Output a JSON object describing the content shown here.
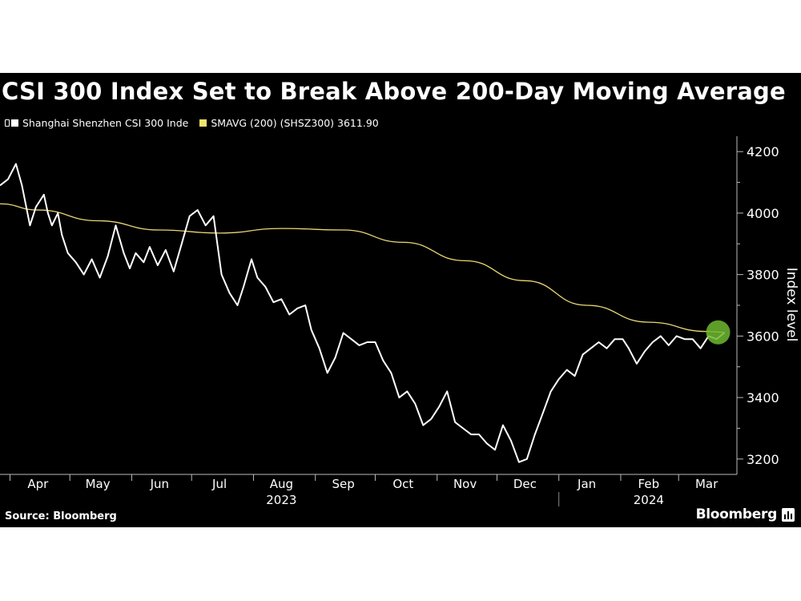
{
  "title": "CSI 300 Index Set to Break Above 200-Day Moving Average",
  "legend": [
    {
      "label": "Shanghai Shenzhen CSI 300 Inde",
      "color": "#ffffff"
    },
    {
      "label": "SMAVG (200)  (SHSZ300) 3611.90",
      "color": "#f2e46c"
    }
  ],
  "source": "Source: Bloomberg",
  "brand": "Bloomberg",
  "colors": {
    "background": "#000000",
    "index_line": "#ffffff",
    "sma_line": "#e8d774",
    "highlight": "#6fb82f"
  },
  "chart_data": {
    "type": "line",
    "title": "CSI 300 Index Set to Break Above 200-Day Moving Average",
    "ylabel": "Index level",
    "ylim": [
      3150,
      4250
    ],
    "yticks": [
      "4200",
      "4000",
      "3800",
      "3600",
      "3400",
      "3200"
    ],
    "ytick_values": [
      4200,
      4000,
      3800,
      3600,
      3400,
      3200
    ],
    "xlim": [
      "2023-03-27",
      "2024-03-27"
    ],
    "month_ticks": [
      {
        "label": "Apr",
        "date": "2023-04-15"
      },
      {
        "label": "May",
        "date": "2023-05-15"
      },
      {
        "label": "Jun",
        "date": "2023-06-15"
      },
      {
        "label": "Jul",
        "date": "2023-07-15"
      },
      {
        "label": "Aug",
        "date": "2023-08-15"
      },
      {
        "label": "Sep",
        "date": "2023-09-15"
      },
      {
        "label": "Oct",
        "date": "2023-10-15"
      },
      {
        "label": "Nov",
        "date": "2023-11-15"
      },
      {
        "label": "Dec",
        "date": "2023-12-15"
      },
      {
        "label": "Jan",
        "date": "2024-01-15"
      },
      {
        "label": "Feb",
        "date": "2024-02-15"
      },
      {
        "label": "Mar",
        "date": "2024-03-15"
      }
    ],
    "year_labels": [
      {
        "label": "2023",
        "date": "2023-08-15"
      },
      {
        "label": "2024",
        "date": "2024-02-15"
      }
    ],
    "series": [
      {
        "name": "Shanghai Shenzhen CSI 300 Inde",
        "x": [
          "2023-03-27",
          "2023-03-31",
          "2023-04-04",
          "2023-04-07",
          "2023-04-11",
          "2023-04-14",
          "2023-04-18",
          "2023-04-20",
          "2023-04-22",
          "2023-04-25",
          "2023-04-27",
          "2023-04-30",
          "2023-05-04",
          "2023-05-08",
          "2023-05-12",
          "2023-05-16",
          "2023-05-20",
          "2023-05-24",
          "2023-05-28",
          "2023-05-31",
          "2023-06-03",
          "2023-06-07",
          "2023-06-10",
          "2023-06-14",
          "2023-06-18",
          "2023-06-22",
          "2023-06-26",
          "2023-06-30",
          "2023-07-04",
          "2023-07-08",
          "2023-07-12",
          "2023-07-16",
          "2023-07-20",
          "2023-07-24",
          "2023-07-27",
          "2023-07-31",
          "2023-08-03",
          "2023-08-07",
          "2023-08-11",
          "2023-08-15",
          "2023-08-19",
          "2023-08-23",
          "2023-08-27",
          "2023-08-30",
          "2023-09-03",
          "2023-09-07",
          "2023-09-11",
          "2023-09-15",
          "2023-09-19",
          "2023-09-23",
          "2023-09-27",
          "2023-10-01",
          "2023-10-05",
          "2023-10-09",
          "2023-10-13",
          "2023-10-17",
          "2023-10-21",
          "2023-10-25",
          "2023-10-29",
          "2023-11-02",
          "2023-11-06",
          "2023-11-10",
          "2023-11-14",
          "2023-11-18",
          "2023-11-22",
          "2023-11-26",
          "2023-11-30",
          "2023-12-04",
          "2023-12-08",
          "2023-12-12",
          "2023-12-16",
          "2023-12-20",
          "2023-12-24",
          "2023-12-28",
          "2024-01-01",
          "2024-01-05",
          "2024-01-09",
          "2024-01-13",
          "2024-01-17",
          "2024-01-21",
          "2024-01-25",
          "2024-01-29",
          "2024-02-02",
          "2024-02-05",
          "2024-02-09",
          "2024-02-13",
          "2024-02-17",
          "2024-02-21",
          "2024-02-25",
          "2024-02-29",
          "2024-03-04",
          "2024-03-08",
          "2024-03-12",
          "2024-03-16",
          "2024-03-20",
          "2024-03-24"
        ],
        "values": [
          4090,
          4110,
          4160,
          4090,
          3960,
          4020,
          4060,
          4000,
          3960,
          4000,
          3930,
          3870,
          3840,
          3800,
          3850,
          3790,
          3860,
          3960,
          3870,
          3820,
          3870,
          3840,
          3890,
          3830,
          3880,
          3810,
          3900,
          3990,
          4010,
          3960,
          3990,
          3800,
          3740,
          3700,
          3760,
          3850,
          3790,
          3760,
          3710,
          3720,
          3670,
          3690,
          3700,
          3620,
          3560,
          3480,
          3530,
          3610,
          3590,
          3570,
          3580,
          3580,
          3520,
          3480,
          3400,
          3420,
          3380,
          3310,
          3330,
          3370,
          3420,
          3320,
          3300,
          3280,
          3280,
          3250,
          3230,
          3310,
          3260,
          3190,
          3200,
          3280,
          3350,
          3420,
          3460,
          3490,
          3470,
          3540,
          3560,
          3580,
          3560,
          3590,
          3590,
          3560,
          3510,
          3550,
          3580,
          3600,
          3570,
          3600,
          3590,
          3590,
          3560,
          3600,
          3590,
          3611
        ],
        "color": "#ffffff"
      },
      {
        "name": "SMAVG (200)  (SHSZ300) 3611.90",
        "x": [
          "2023-03-27",
          "2023-04-15",
          "2023-05-15",
          "2023-06-15",
          "2023-07-15",
          "2023-08-15",
          "2023-09-15",
          "2023-10-15",
          "2023-11-15",
          "2023-12-15",
          "2024-01-15",
          "2024-02-15",
          "2024-03-15",
          "2024-03-24"
        ],
        "values": [
          4030,
          4010,
          3975,
          3945,
          3935,
          3950,
          3945,
          3905,
          3845,
          3780,
          3700,
          3645,
          3615,
          3612
        ],
        "color": "#e8d774"
      }
    ],
    "highlight": {
      "date": "2024-03-24",
      "value": 3612
    },
    "grid": false,
    "legend_position": "top-left"
  }
}
